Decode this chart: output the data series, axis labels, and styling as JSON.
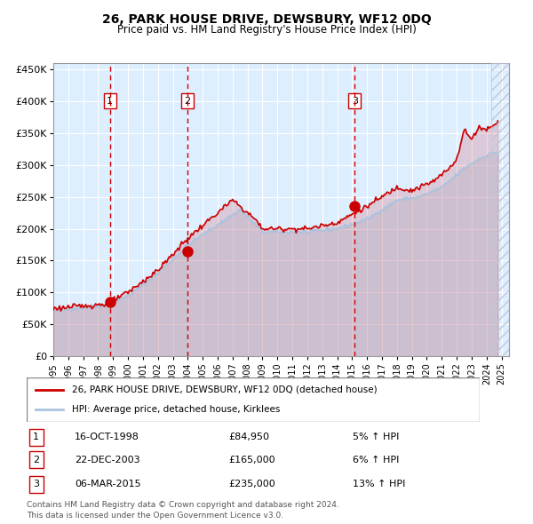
{
  "title": "26, PARK HOUSE DRIVE, DEWSBURY, WF12 0DQ",
  "subtitle": "Price paid vs. HM Land Registry's House Price Index (HPI)",
  "legend_line1": "26, PARK HOUSE DRIVE, DEWSBURY, WF12 0DQ (detached house)",
  "legend_line2": "HPI: Average price, detached house, Kirklees",
  "sale_points": [
    {
      "date": "1998-10-16",
      "price": 84950,
      "label": "1"
    },
    {
      "date": "2003-12-22",
      "price": 165000,
      "label": "2"
    },
    {
      "date": "2015-03-06",
      "price": 235000,
      "label": "3"
    }
  ],
  "table_rows": [
    {
      "num": "1",
      "date": "16-OCT-1998",
      "price": "£84,950",
      "hpi": "5% ↑ HPI"
    },
    {
      "num": "2",
      "date": "22-DEC-2003",
      "price": "£165,000",
      "hpi": "6% ↑ HPI"
    },
    {
      "num": "3",
      "date": "06-MAR-2015",
      "price": "£235,000",
      "hpi": "13% ↑ HPI"
    }
  ],
  "footnote1": "Contains HM Land Registry data © Crown copyright and database right 2024.",
  "footnote2": "This data is licensed under the Open Government Licence v3.0.",
  "hpi_color": "#aac4e0",
  "price_color": "#cc0000",
  "sale_dot_color": "#cc0000",
  "vline_color": "#cc0000",
  "bg_color": "#ddeeff",
  "hatch_color": "#c0c8d8",
  "ylim": [
    0,
    460000
  ],
  "yticks": [
    0,
    50000,
    100000,
    150000,
    200000,
    250000,
    300000,
    350000,
    400000,
    450000
  ],
  "xstart": 1995.0,
  "xend": 2025.5
}
